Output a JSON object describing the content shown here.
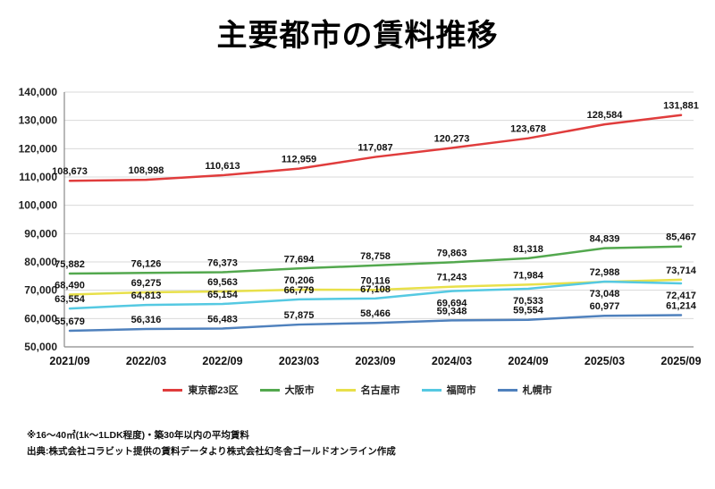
{
  "page": {
    "title": "主要都市の賃料推移",
    "footnote_criteria": "※16～40㎡(1k～1LDK程度)・築30年以内の平均賃料",
    "footnote_source": "出典:株式会社コラビット提供の賃料データより株式会社幻冬舎ゴールドオンライン作成"
  },
  "chart_data": {
    "type": "line",
    "title": "主要都市の賃料推移",
    "x": [
      "2021/09",
      "2022/03",
      "2022/09",
      "2023/03",
      "2023/09",
      "2024/03",
      "2024/09",
      "2025/03",
      "2025/09"
    ],
    "ylim": [
      50000,
      140000
    ],
    "ytick_step": 10000,
    "grid": true,
    "legend_position": "bottom",
    "ylabel": "",
    "xlabel": "",
    "series": [
      {
        "name": "東京都23区",
        "color": "#e03c3c",
        "values": [
          108673,
          108998,
          110613,
          112959,
          117087,
          120273,
          123678,
          128584,
          131881
        ]
      },
      {
        "name": "大阪市",
        "color": "#53a84e",
        "values": [
          75882,
          76126,
          76373,
          77694,
          78758,
          79863,
          81318,
          84839,
          85467
        ]
      },
      {
        "name": "名古屋市",
        "color": "#e8e04a",
        "values": [
          68490,
          69275,
          69563,
          70206,
          70116,
          71243,
          71984,
          72988,
          73714
        ]
      },
      {
        "name": "福岡市",
        "color": "#55c9e2",
        "values": [
          63554,
          64813,
          65154,
          66779,
          67108,
          69694,
          70533,
          73048,
          72417
        ]
      },
      {
        "name": "札幌市",
        "color": "#4f81bd",
        "values": [
          55679,
          56316,
          56483,
          57875,
          58466,
          59348,
          59554,
          60977,
          61214
        ]
      }
    ]
  }
}
